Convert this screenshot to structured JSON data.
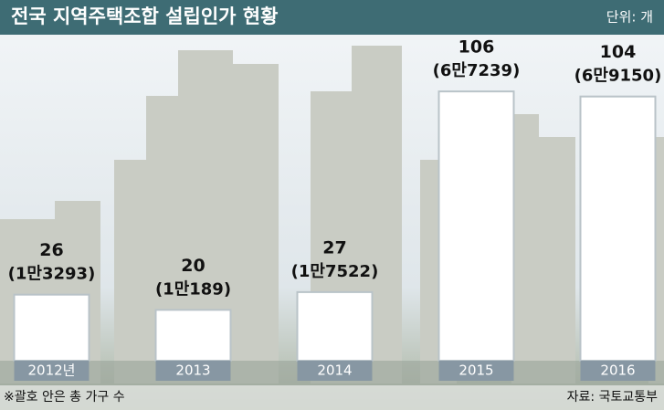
{
  "chart_data": {
    "type": "bar",
    "title": "전국 지역주택조합 설립인가 현황",
    "unit": "단위: 개",
    "categories": [
      "2012년",
      "2013",
      "2014",
      "2015",
      "2016"
    ],
    "values": [
      26,
      20,
      27,
      106,
      104
    ],
    "household_labels": [
      "(1만3293)",
      "(1만189)",
      "(1만7522)",
      "(6만7239)",
      "(6만9150)"
    ],
    "color": "#ffffff",
    "ylim": [
      0,
      110
    ],
    "note": "※괄호 안은 총 가구 수",
    "source": "자료: 국토교통부"
  }
}
